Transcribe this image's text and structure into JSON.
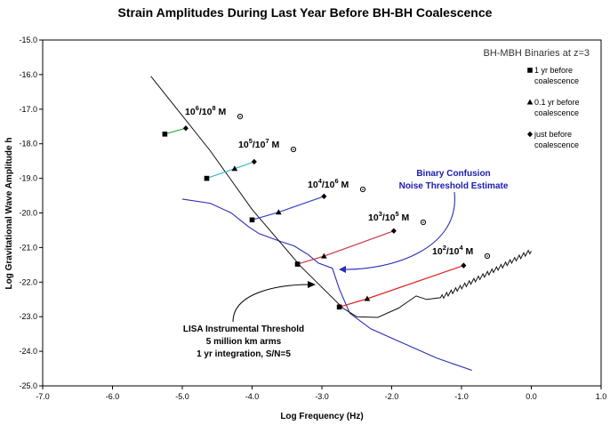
{
  "chart_data": {
    "type": "line",
    "title": "Strain Amplitudes During Last Year Before BH-BH Coalescence",
    "xlabel": "Log Frequency (Hz)",
    "ylabel": "Log Gravitational Wave Amplitude h",
    "xlim": [
      -7.0,
      1.0
    ],
    "ylim": [
      -25.0,
      -15.0
    ],
    "x_ticks": [
      "-7.0",
      "-6.0",
      "-5.0",
      "-4.0",
      "-3.0",
      "-2.0",
      "-1.0",
      "0.0",
      "1.0"
    ],
    "y_ticks": [
      "-15.0",
      "-16.0",
      "-17.0",
      "-18.0",
      "-19.0",
      "-20.0",
      "-21.0",
      "-22.0",
      "-23.0",
      "-24.0",
      "-25.0"
    ],
    "inset_title": "BH-MBH Binaries at z=3",
    "legend": [
      {
        "marker": "square",
        "label": "1 yr before coalescence"
      },
      {
        "marker": "triangle",
        "label": "0.1 yr before coalescence"
      },
      {
        "marker": "diamond",
        "label": "just before coalescence"
      }
    ],
    "series": [
      {
        "base": "10",
        "exp1": "6",
        "exp2": "8",
        "unit": "M",
        "color": "#2ab04a",
        "points": [
          [
            -5.25,
            -17.72
          ],
          [
            -4.95,
            -17.55
          ]
        ]
      },
      {
        "base": "10",
        "exp1": "5",
        "exp2": "7",
        "unit": "M",
        "color": "#3bb8c6",
        "points": [
          [
            -4.65,
            -19.0
          ],
          [
            -4.25,
            -18.72
          ],
          [
            -3.97,
            -18.52
          ]
        ]
      },
      {
        "base": "10",
        "exp1": "4",
        "exp2": "6",
        "unit": "M",
        "color": "#3344cc",
        "points": [
          [
            -4.0,
            -20.2
          ],
          [
            -3.62,
            -19.98
          ],
          [
            -2.97,
            -19.52
          ]
        ]
      },
      {
        "base": "10",
        "exp1": "3",
        "exp2": "5",
        "unit": "M",
        "color": "#cc3344",
        "points": [
          [
            -3.35,
            -21.48
          ],
          [
            -2.97,
            -21.25
          ],
          [
            -1.97,
            -20.52
          ]
        ]
      },
      {
        "base": "10",
        "exp1": "2",
        "exp2": "4",
        "unit": "M",
        "color": "#dd2222",
        "points": [
          [
            -2.75,
            -22.72
          ],
          [
            -2.35,
            -22.48
          ],
          [
            -0.97,
            -21.52
          ]
        ]
      }
    ],
    "lisa_threshold": [
      [
        -5.45,
        -16.05
      ],
      [
        -4.6,
        -18.2
      ],
      [
        -4.0,
        -19.9
      ],
      [
        -3.3,
        -21.55
      ],
      [
        -2.7,
        -22.75
      ],
      [
        -2.5,
        -23.0
      ],
      [
        -2.2,
        -23.02
      ],
      [
        -1.9,
        -22.75
      ],
      [
        -1.65,
        -22.4
      ],
      [
        -1.5,
        -22.5
      ],
      [
        -1.3,
        -22.45
      ],
      [
        -1.0,
        -22.05
      ],
      [
        -0.5,
        -21.65
      ],
      [
        0.0,
        -21.1
      ]
    ],
    "binary_confusion": [
      [
        -5.0,
        -19.6
      ],
      [
        -4.6,
        -19.72
      ],
      [
        -4.3,
        -20.0
      ],
      [
        -4.05,
        -20.4
      ],
      [
        -3.9,
        -20.6
      ],
      [
        -3.6,
        -20.82
      ],
      [
        -3.4,
        -20.95
      ],
      [
        -3.2,
        -21.2
      ],
      [
        -3.05,
        -21.45
      ],
      [
        -2.85,
        -21.6
      ],
      [
        -2.75,
        -22.2
      ],
      [
        -2.6,
        -22.9
      ],
      [
        -2.3,
        -23.35
      ],
      [
        -1.8,
        -23.8
      ],
      [
        -1.35,
        -24.2
      ],
      [
        -0.85,
        -24.55
      ]
    ],
    "annotations": {
      "confusion_line1": "Binary Confusion",
      "confusion_line2": "Noise Threshold Estimate",
      "lisa_line1": "LISA Instrumental Threshold",
      "lisa_line2": "5 million km arms",
      "lisa_line3": "1 yr integration, S/N=5"
    }
  }
}
